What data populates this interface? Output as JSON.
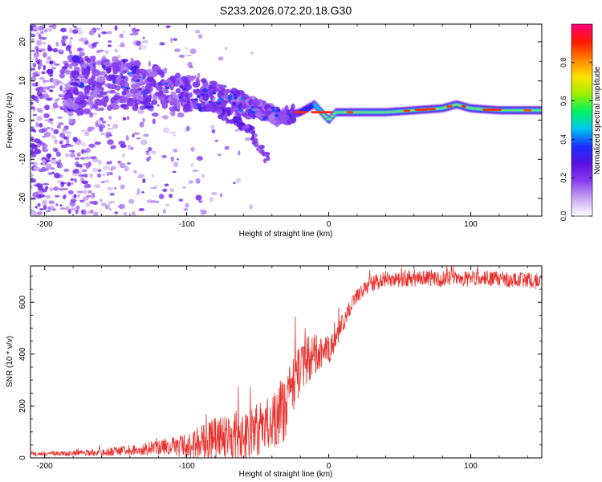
{
  "title": "S233.2026.072.20.18.G30",
  "chart_data": [
    {
      "type": "heatmap",
      "name": "spectrogram",
      "title": "S233.2026.072.20.18.G30",
      "xlabel": "Height of straight line (km)",
      "ylabel": "Frequency (Hz)",
      "xlim": [
        -210,
        150
      ],
      "ylim": [
        -24.5,
        24.5
      ],
      "xticks": [
        -200,
        -100,
        0,
        100
      ],
      "yticks": [
        -20,
        -10,
        0,
        10,
        20
      ],
      "colorbar": {
        "label": "Normalized spectral amplitude",
        "range": [
          0,
          1
        ],
        "ticks": [
          0.0,
          0.2,
          0.4,
          0.6,
          0.8
        ],
        "tick_labels": [
          "0.0",
          "0.2",
          "0.4",
          "0.6",
          "0.8"
        ],
        "colormap": [
          "#ffffff",
          "#c9a8f2",
          "#8a3ef0",
          "#5a10e0",
          "#1a30ff",
          "#00c8f0",
          "#00f060",
          "#a0f000",
          "#ffe000",
          "#ff8000",
          "#ff1800",
          "#ff0080"
        ]
      },
      "ridge": {
        "x": [
          -210,
          -180,
          -160,
          -140,
          -120,
          -100,
          -80,
          -60,
          -50,
          -40,
          -35,
          -30,
          -25,
          -20,
          -15,
          -10,
          -5,
          0,
          5,
          10,
          20,
          40,
          60,
          80,
          90,
          100,
          120,
          150
        ],
        "freq": [
          9,
          9,
          9.5,
          9,
          8,
          7,
          6,
          4,
          3,
          1.5,
          0.5,
          1,
          1.5,
          2,
          3,
          4,
          2,
          0,
          2,
          2,
          2,
          2,
          2.5,
          3,
          4,
          3,
          2.5,
          2.5
        ]
      },
      "low_branch": {
        "x": [
          -80,
          -70,
          -60,
          -55,
          -50,
          -45
        ],
        "freq": [
          3,
          1,
          -1,
          -3,
          -6,
          -9
        ]
      },
      "strong_band": {
        "x_start": -25,
        "x_end": 150,
        "freq": [
          1,
          2.5,
          3.5
        ],
        "hot_spots_x": [
          -20,
          -5,
          15,
          55,
          65,
          72,
          85,
          95,
          115,
          140
        ]
      }
    },
    {
      "type": "line",
      "name": "snr",
      "xlabel": "Height of straight line (km)",
      "ylabel": "SNR (10 * v/v)",
      "xlim": [
        -210,
        150
      ],
      "ylim": [
        0,
        740
      ],
      "xticks": [
        -200,
        -100,
        0,
        100
      ],
      "yticks": [
        0,
        200,
        400,
        600
      ],
      "color": "#e8302c",
      "envelope": {
        "x": [
          -210,
          -180,
          -160,
          -140,
          -120,
          -100,
          -90,
          -80,
          -70,
          -60,
          -50,
          -40,
          -30,
          -25,
          -20,
          -15,
          -10,
          -5,
          0,
          5,
          10,
          15,
          20,
          30,
          40,
          50,
          100,
          120,
          150
        ],
        "base": [
          15,
          18,
          22,
          30,
          40,
          50,
          60,
          65,
          75,
          90,
          110,
          140,
          200,
          290,
          340,
          380,
          400,
          410,
          420,
          460,
          520,
          580,
          630,
          670,
          690,
          690,
          690,
          690,
          680
        ],
        "noise": [
          8,
          10,
          15,
          20,
          30,
          50,
          70,
          90,
          90,
          100,
          100,
          120,
          130,
          110,
          100,
          90,
          80,
          70,
          60,
          50,
          40,
          30,
          30,
          30,
          30,
          30,
          30,
          30,
          30
        ]
      }
    }
  ]
}
